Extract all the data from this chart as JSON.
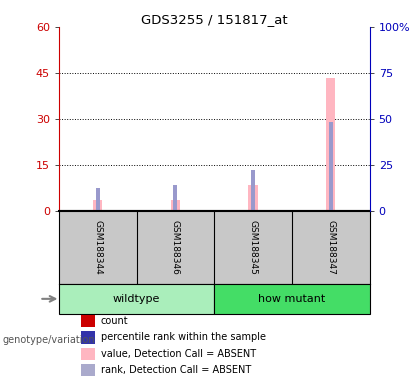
{
  "title": "GDS3255 / 151817_at",
  "samples": [
    "GSM188344",
    "GSM188346",
    "GSM188345",
    "GSM188347"
  ],
  "ylim_left": [
    0,
    60
  ],
  "ylim_right": [
    0,
    100
  ],
  "yticks_left": [
    0,
    15,
    30,
    45,
    60
  ],
  "yticks_right": [
    0,
    25,
    50,
    75,
    100
  ],
  "pink_values": [
    3.8,
    3.8,
    8.5,
    43.5
  ],
  "blue_values": [
    7.5,
    8.5,
    13.5,
    29.0
  ],
  "red_values": [
    0.5,
    0.5,
    0.5,
    0.5
  ],
  "pink_color": "#FFB6C1",
  "blue_color": "#9999CC",
  "red_color": "#CC0000",
  "dark_blue_color": "#3333AA",
  "bg_color": "#FFFFFF",
  "left_axis_color": "#CC0000",
  "right_axis_color": "#0000BB",
  "sample_bg_color": "#C8C8C8",
  "group_bg_color_wildtype": "#AAEEBB",
  "group_bg_color_how": "#44DD66",
  "legend_items": [
    {
      "color": "#CC0000",
      "label": "count"
    },
    {
      "color": "#3333AA",
      "label": "percentile rank within the sample"
    },
    {
      "color": "#FFB6C1",
      "label": "value, Detection Call = ABSENT"
    },
    {
      "color": "#AAAACC",
      "label": "rank, Detection Call = ABSENT"
    }
  ],
  "genotype_label": "genotype/variation",
  "x_positions": [
    0,
    1,
    2,
    3
  ],
  "pink_bar_width": 0.12,
  "blue_bar_width": 0.055,
  "red_bar_width": 0.055
}
